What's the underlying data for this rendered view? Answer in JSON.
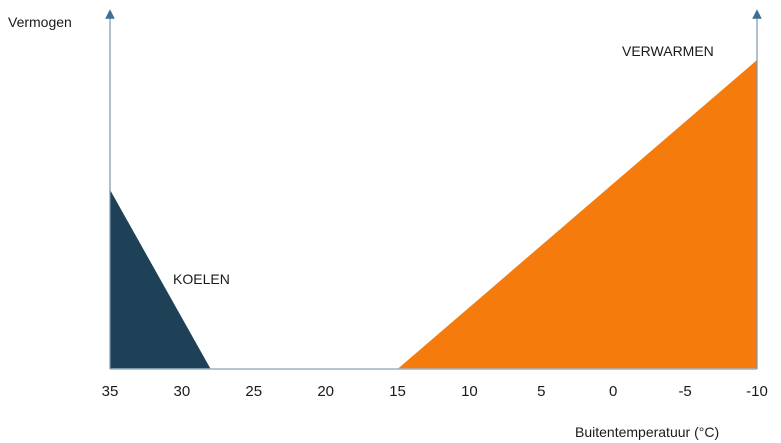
{
  "chart_data": {
    "type": "area",
    "title": "",
    "xlabel": "Buitentemperatuur (°C)",
    "ylabel": "Vermogen",
    "x_ticks": [
      35,
      30,
      25,
      20,
      15,
      10,
      5,
      0,
      -5,
      -10
    ],
    "xlim": [
      35,
      -10
    ],
    "ylim": [
      0,
      1
    ],
    "grid": false,
    "series": [
      {
        "name": "KOELEN",
        "color": "#1f4158",
        "points": [
          [
            35,
            0.58
          ],
          [
            28,
            0
          ]
        ]
      },
      {
        "name": "VERWARMEN",
        "color": "#f47b0c",
        "points": [
          [
            15,
            0
          ],
          [
            -10,
            1
          ]
        ]
      }
    ],
    "axis_color": "#7a97ad",
    "baseline_color": "#9cb4c4"
  }
}
